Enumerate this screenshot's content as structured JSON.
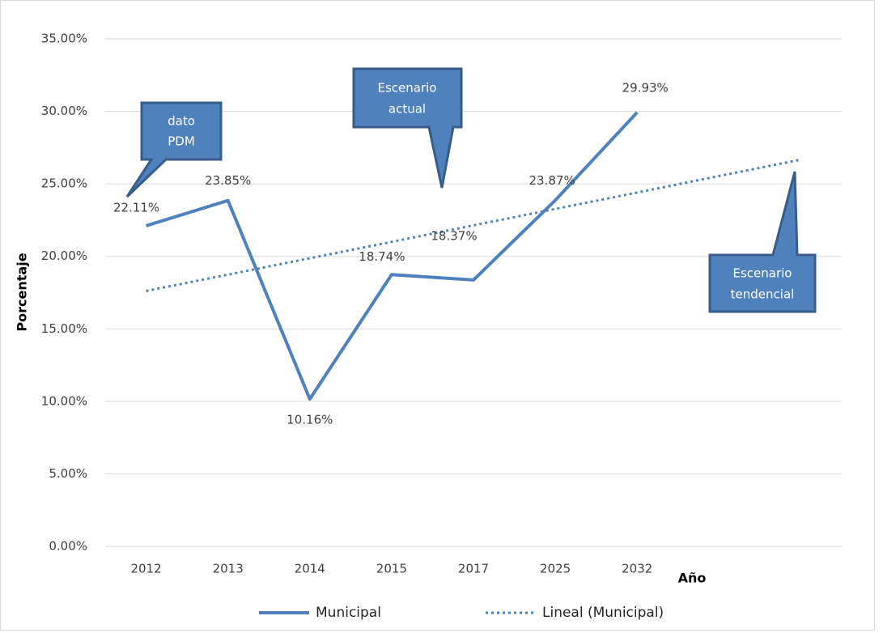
{
  "chart_data": {
    "type": "line",
    "y_axis_label": "Porcentaje",
    "x_axis_label": "Año",
    "categories": [
      "2012",
      "2013",
      "2014",
      "2015",
      "2017",
      "2025",
      "2032",
      null,
      null
    ],
    "series": [
      {
        "name": "Municipal",
        "color": "#4f81bd",
        "style": "solid",
        "values": [
          22.11,
          23.85,
          10.16,
          18.74,
          18.37,
          23.87,
          29.93,
          null,
          null
        ],
        "value_labels": [
          "22.11%",
          "23.85%",
          "10.16%",
          "18.74%",
          "18.37%",
          "23.87%",
          "29.93%",
          null,
          null
        ]
      },
      {
        "name": "Lineal (Municipal)",
        "color": "#4f81bd",
        "style": "dotted",
        "values": [
          17.61,
          18.74,
          19.87,
          21.0,
          22.14,
          23.27,
          24.4,
          25.54,
          26.67
        ]
      }
    ],
    "ylim": [
      0,
      35
    ],
    "yticks": [
      {
        "value": 0,
        "label": "0.00%"
      },
      {
        "value": 5,
        "label": "5.00%"
      },
      {
        "value": 10,
        "label": "10.00%"
      },
      {
        "value": 15,
        "label": "15.00%"
      },
      {
        "value": 20,
        "label": "20.00%"
      },
      {
        "value": 25,
        "label": "25.00%"
      },
      {
        "value": 30,
        "label": "30.00%"
      },
      {
        "value": 35,
        "label": "35.00%"
      }
    ],
    "grid": true,
    "legend": "bottom",
    "annotations": [
      {
        "lines": [
          "dato",
          "PDM"
        ]
      },
      {
        "lines": [
          "Escenario",
          "actual"
        ]
      },
      {
        "lines": [
          "Escenario",
          "tendencial"
        ]
      }
    ]
  }
}
